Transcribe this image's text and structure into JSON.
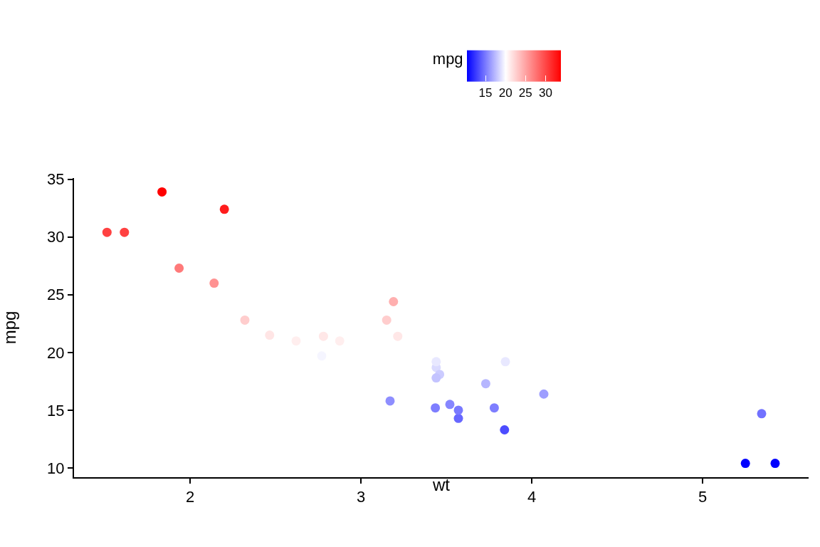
{
  "chart_data": {
    "type": "scatter",
    "xlabel": "wt",
    "ylabel": "mpg",
    "clabel": "mpg",
    "x": [
      2.62,
      2.875,
      2.32,
      3.215,
      3.44,
      3.46,
      3.57,
      3.19,
      3.15,
      3.44,
      3.44,
      4.07,
      3.73,
      3.78,
      5.25,
      5.424,
      5.345,
      2.2,
      1.615,
      1.835,
      2.465,
      3.52,
      3.435,
      3.84,
      3.845,
      1.935,
      2.14,
      1.513,
      3.17,
      2.77,
      3.57,
      2.78
    ],
    "values": [
      21.0,
      21.0,
      22.8,
      21.4,
      18.7,
      18.1,
      14.3,
      24.4,
      22.8,
      19.2,
      17.8,
      16.4,
      17.3,
      15.2,
      10.4,
      10.4,
      14.7,
      32.4,
      30.4,
      33.9,
      21.5,
      15.5,
      15.2,
      13.3,
      19.2,
      27.3,
      26.0,
      30.4,
      15.8,
      19.7,
      15.0,
      21.4
    ],
    "cvalues": [
      21.0,
      21.0,
      22.8,
      21.4,
      18.7,
      18.1,
      14.3,
      24.4,
      22.8,
      19.2,
      17.8,
      16.4,
      17.3,
      15.2,
      10.4,
      10.4,
      14.7,
      32.4,
      30.4,
      33.9,
      21.5,
      15.5,
      15.2,
      13.3,
      19.2,
      27.3,
      26.0,
      30.4,
      15.8,
      19.7,
      15.0,
      21.4
    ],
    "clim": [
      10.4,
      33.9
    ],
    "cticks": [
      15,
      20,
      25,
      30
    ],
    "xlim": [
      1.32,
      5.62
    ],
    "xticks": [
      2,
      3,
      4,
      5
    ],
    "ylim": [
      9.2,
      35.1
    ],
    "yticks": [
      10,
      15,
      20,
      25,
      30,
      35
    ],
    "grid": false,
    "marker": "circle"
  }
}
